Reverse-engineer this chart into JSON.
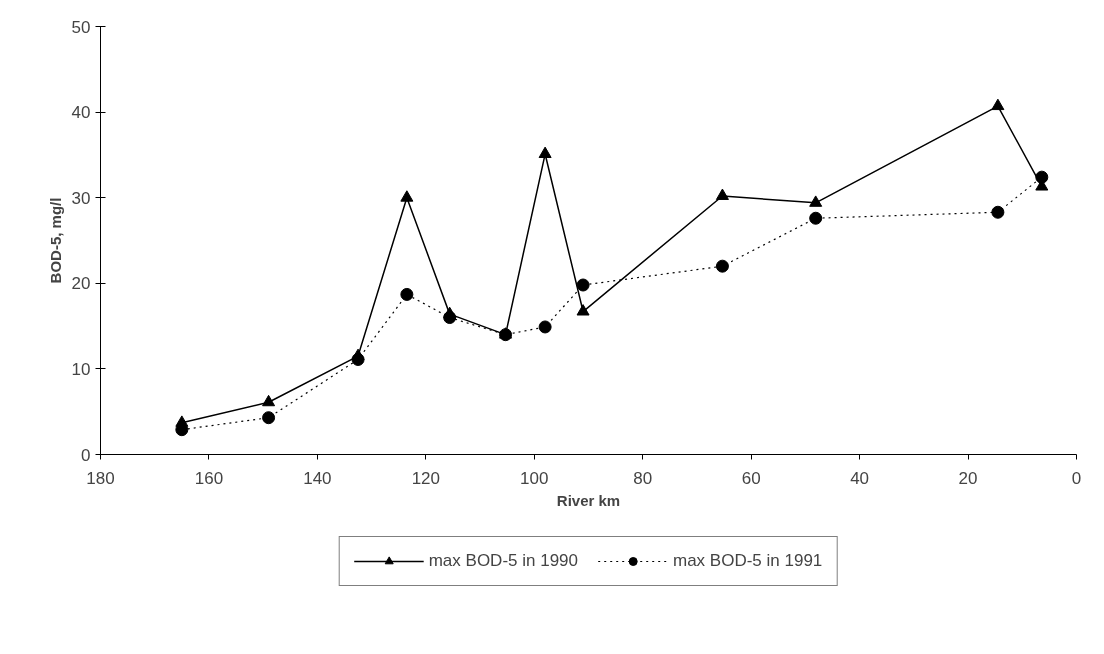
{
  "chart_data": {
    "type": "line",
    "xlabel": "River km",
    "ylabel": "BOD-5, mg/l",
    "x": [
      165,
      149,
      132.5,
      123.5,
      115.6,
      105.3,
      98,
      91,
      65.3,
      48.1,
      14.5,
      6.4
    ],
    "series": [
      {
        "name": "max BOD-5 in 1990",
        "color": "#000000",
        "marker": "triangle",
        "line_style": "solid",
        "values": [
          3.7,
          6.1,
          11.5,
          30.0,
          16.4,
          14.0,
          35.1,
          16.7,
          30.2,
          29.4,
          40.7,
          31.3
        ]
      },
      {
        "name": "max BOD-5 in 1991",
        "color": "#000000",
        "marker": "circle",
        "line_style": "dotted",
        "values": [
          2.9,
          4.3,
          11.1,
          18.7,
          16.0,
          14.0,
          14.9,
          19.8,
          22.0,
          27.6,
          28.3,
          32.4
        ]
      }
    ],
    "xlim": [
      180,
      0
    ],
    "xticks": [
      180,
      160,
      140,
      120,
      100,
      80,
      60,
      40,
      20,
      0
    ],
    "ylim": [
      0,
      50
    ],
    "yticks": [
      0,
      10,
      20,
      30,
      40,
      50
    ],
    "grid": false,
    "legend": "bottom"
  }
}
